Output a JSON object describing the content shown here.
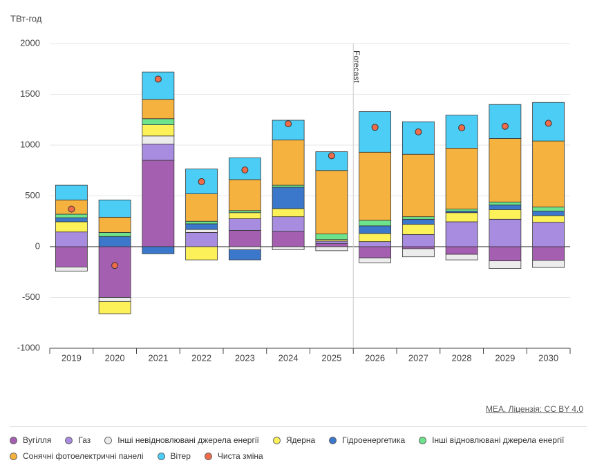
{
  "chart_data": {
    "type": "stacked_bar",
    "y_label": "ТВт-год",
    "source": "МЕА. Ліцензія: CC BY 4.0",
    "categories": [
      "2019",
      "2020",
      "2021",
      "2022",
      "2023",
      "2024",
      "2025",
      "2026",
      "2027",
      "2028",
      "2029",
      "2030"
    ],
    "ylim": [
      -1000,
      2000
    ],
    "yticks": [
      -1000,
      -500,
      0,
      500,
      1000,
      1500,
      2000
    ],
    "grid": true,
    "forecast": {
      "label": "Forecast",
      "from": "2026"
    },
    "series": [
      {
        "name": "Вугілля",
        "color": "#a55fb0",
        "values": [
          -200,
          -500,
          850,
          0,
          160,
          150,
          30,
          -110,
          -20,
          -75,
          -140,
          -135
        ]
      },
      {
        "name": "Газ",
        "color": "#a88ce0",
        "values": [
          145,
          0,
          160,
          140,
          115,
          145,
          25,
          50,
          120,
          245,
          270,
          240
        ]
      },
      {
        "name": "Інші невідновлювані джерела енергії",
        "color": "#ececec",
        "values": [
          -40,
          -40,
          80,
          30,
          -30,
          -30,
          -40,
          -50,
          -80,
          -55,
          -75,
          -70
        ]
      },
      {
        "name": "Ядерна",
        "color": "#fdf15a",
        "values": [
          100,
          -120,
          110,
          -130,
          60,
          80,
          15,
          80,
          100,
          90,
          95,
          65
        ]
      },
      {
        "name": "Гідроенергетика",
        "color": "#3b78cc",
        "values": [
          40,
          100,
          -70,
          55,
          -100,
          210,
          0,
          75,
          50,
          15,
          45,
          45
        ]
      },
      {
        "name": "Інші відновлювані джерела енергії",
        "color": "#6de38b",
        "values": [
          35,
          40,
          60,
          25,
          20,
          20,
          55,
          55,
          25,
          20,
          30,
          40
        ]
      },
      {
        "name": "Сонячні фотоелектричні панелі",
        "color": "#f6b23f",
        "values": [
          140,
          150,
          190,
          270,
          305,
          445,
          625,
          670,
          615,
          600,
          625,
          650
        ]
      },
      {
        "name": "Вітер",
        "color": "#4ccdf6",
        "values": [
          145,
          170,
          270,
          245,
          215,
          195,
          185,
          400,
          320,
          325,
          335,
          380
        ]
      },
      {
        "name": "Чиста зміна",
        "color": "#f06b4a",
        "kind": "dot",
        "values": [
          370,
          -185,
          1650,
          640,
          755,
          1210,
          895,
          1175,
          1130,
          1170,
          1185,
          1215
        ]
      }
    ]
  }
}
